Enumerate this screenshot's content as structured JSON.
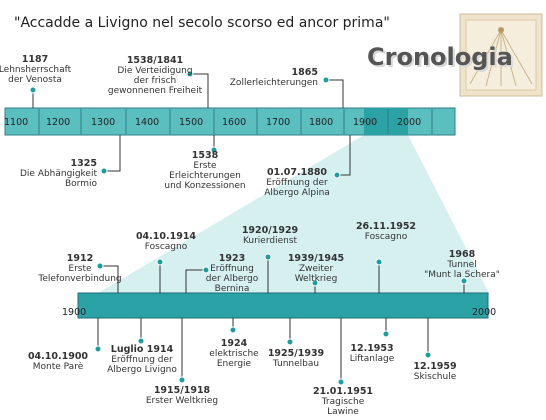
{
  "header": {
    "title": "\"Accadde a Livigno nel secolo scorso ed ancor prima\"",
    "logo": "Cronologia"
  },
  "top_timeline": {
    "labels": [
      "1100",
      "1200",
      "1300",
      "1400",
      "1500",
      "1600",
      "1700",
      "1800",
      "1900",
      "2000"
    ],
    "events": [
      {
        "date": "1187",
        "lines": [
          "Lehnsherrschaft",
          "der Venosta"
        ]
      },
      {
        "date": "1538/1841",
        "lines": [
          "Die Verteidigung",
          "der frisch",
          "gewonnenen Freiheit"
        ]
      },
      {
        "date": "1865",
        "lines": [
          "Zollerleichterungen"
        ]
      },
      {
        "date": "1325",
        "lines": [
          "Die Abhängigkeit",
          "Bormio"
        ]
      },
      {
        "date": "1538",
        "lines": [
          "Erste",
          "Erleichterungen",
          "und Konzessionen"
        ]
      },
      {
        "date": "01.07.1880",
        "lines": [
          "Eröffnung der",
          "Albergo Alpina"
        ]
      }
    ]
  },
  "bottom_timeline": {
    "labels": [
      "1900",
      "2000"
    ],
    "events": [
      {
        "date": "1912",
        "lines": [
          "Erste",
          "Telefonverbindung"
        ]
      },
      {
        "date": "04.10.1914",
        "lines": [
          "Foscagno"
        ]
      },
      {
        "date": "1923",
        "lines": [
          "Eröffnung",
          "der Albergo",
          "Bernina"
        ]
      },
      {
        "date": "1920/1929",
        "lines": [
          "Kurierdienst"
        ]
      },
      {
        "date": "1939/1945",
        "lines": [
          "Zweiter",
          "Weltkrieg"
        ]
      },
      {
        "date": "26.11.1952",
        "lines": [
          "Foscagno"
        ]
      },
      {
        "date": "1968",
        "lines": [
          "Tunnel",
          "\"Munt la Schera\""
        ]
      },
      {
        "date": "04.10.1900",
        "lines": [
          "Monte Parè"
        ]
      },
      {
        "date": "Luglio 1914",
        "lines": [
          "Eröffnung der",
          "Albergo Livigno"
        ]
      },
      {
        "date": "1915/1918",
        "lines": [
          "Erster Weltkrieg"
        ]
      },
      {
        "date": "1924",
        "lines": [
          "elektrische",
          "Energie"
        ]
      },
      {
        "date": "1925/1939",
        "lines": [
          "Tunnelbau"
        ]
      },
      {
        "date": "21.01.1951",
        "lines": [
          "Tragische",
          "Lawine"
        ]
      },
      {
        "date": "12.1953",
        "lines": [
          "Liftanlage"
        ]
      },
      {
        "date": "12.1959",
        "lines": [
          "Skischule"
        ]
      }
    ]
  }
}
